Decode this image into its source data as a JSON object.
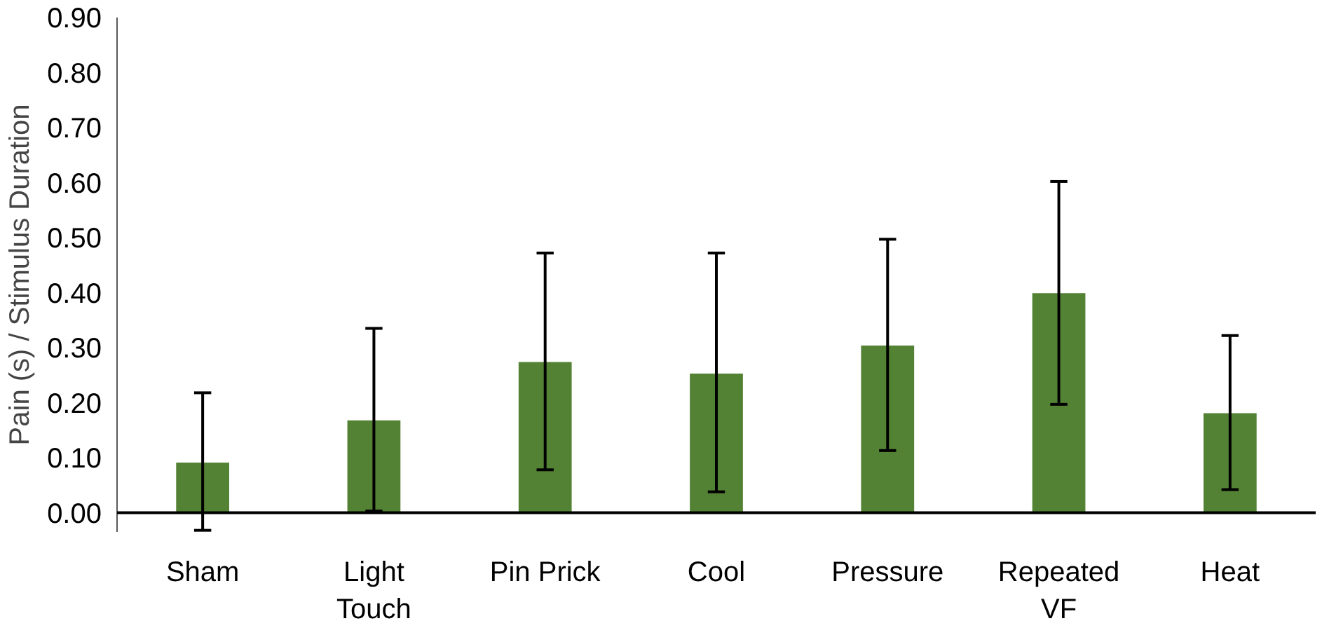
{
  "chart_data": {
    "type": "bar",
    "ylabel": "Pain (s) / Stimulus Duration",
    "categories": [
      "Sham",
      "Light Touch",
      "Pin Prick",
      "Cool",
      "Pressure",
      "Repeated VF",
      "Heat"
    ],
    "values": [
      0.091,
      0.168,
      0.274,
      0.253,
      0.304,
      0.399,
      0.181
    ],
    "errors": [
      [
        -0.032,
        0.218
      ],
      [
        0.003,
        0.335
      ],
      [
        0.078,
        0.472
      ],
      [
        0.038,
        0.472
      ],
      [
        0.113,
        0.497
      ],
      [
        0.197,
        0.602
      ],
      [
        0.042,
        0.322
      ]
    ],
    "color": "#548235",
    "ylim": [
      -0.035,
      0.9
    ],
    "yticks": [
      {
        "value": 0,
        "label": "0.00"
      },
      {
        "value": 0.1,
        "label": "0.10"
      },
      {
        "value": 0.2,
        "label": "0.20"
      },
      {
        "value": 0.3,
        "label": "0.30"
      },
      {
        "value": 0.4,
        "label": "0.40"
      },
      {
        "value": 0.5,
        "label": "0.50"
      },
      {
        "value": 0.6,
        "label": "0.60"
      },
      {
        "value": 0.7,
        "label": "0.70"
      },
      {
        "value": 0.8,
        "label": "0.80"
      },
      {
        "value": 0.9,
        "label": "0.90"
      }
    ],
    "grid": false
  }
}
